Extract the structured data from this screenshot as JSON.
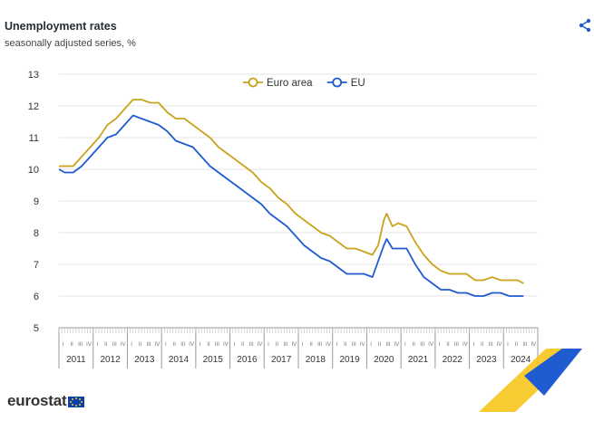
{
  "header": {
    "title": "Unemployment rates",
    "subtitle": "seasonally adjusted series, %"
  },
  "footer": {
    "logo_text": "eurostat"
  },
  "icons": {
    "share": "share-icon",
    "flag": "eu-flag-icon"
  },
  "colors": {
    "euro_area": "#c9a31e",
    "eu": "#1f5bd1",
    "grid": "#e4e4e4",
    "brand_yellow": "#f6c51b",
    "brand_blue": "#1f5bd1"
  },
  "chart_data": {
    "type": "line",
    "title": "Unemployment rates",
    "subtitle": "seasonally adjusted series, %",
    "xlabel": "",
    "ylabel": "",
    "ylim": [
      5,
      13
    ],
    "yticks": [
      5,
      6,
      7,
      8,
      9,
      10,
      11,
      12,
      13
    ],
    "grid": "horizontal",
    "legend": "top-center",
    "x_years": [
      "2011",
      "2012",
      "2013",
      "2014",
      "2015",
      "2016",
      "2017",
      "2018",
      "2019",
      "2020",
      "2021",
      "2022",
      "2023",
      "2024"
    ],
    "x_quarters": [
      "I",
      "II",
      "III",
      "IV"
    ],
    "x_start": "2011-01",
    "x_end": "2024-08",
    "series": [
      {
        "name": "Euro area",
        "color": "#c9a31e",
        "points": [
          [
            "2011-01",
            10.1
          ],
          [
            "2011-03",
            10.1
          ],
          [
            "2011-06",
            10.1
          ],
          [
            "2011-09",
            10.4
          ],
          [
            "2011-12",
            10.7
          ],
          [
            "2012-03",
            11.0
          ],
          [
            "2012-06",
            11.4
          ],
          [
            "2012-09",
            11.6
          ],
          [
            "2012-12",
            11.9
          ],
          [
            "2013-03",
            12.2
          ],
          [
            "2013-06",
            12.2
          ],
          [
            "2013-09",
            12.1
          ],
          [
            "2013-12",
            12.1
          ],
          [
            "2014-03",
            11.8
          ],
          [
            "2014-06",
            11.6
          ],
          [
            "2014-09",
            11.6
          ],
          [
            "2014-12",
            11.4
          ],
          [
            "2015-03",
            11.2
          ],
          [
            "2015-06",
            11.0
          ],
          [
            "2015-09",
            10.7
          ],
          [
            "2015-12",
            10.5
          ],
          [
            "2016-03",
            10.3
          ],
          [
            "2016-06",
            10.1
          ],
          [
            "2016-09",
            9.9
          ],
          [
            "2016-12",
            9.6
          ],
          [
            "2017-03",
            9.4
          ],
          [
            "2017-06",
            9.1
          ],
          [
            "2017-09",
            8.9
          ],
          [
            "2017-12",
            8.6
          ],
          [
            "2018-03",
            8.4
          ],
          [
            "2018-06",
            8.2
          ],
          [
            "2018-09",
            8.0
          ],
          [
            "2018-12",
            7.9
          ],
          [
            "2019-03",
            7.7
          ],
          [
            "2019-06",
            7.5
          ],
          [
            "2019-09",
            7.5
          ],
          [
            "2019-12",
            7.4
          ],
          [
            "2020-03",
            7.3
          ],
          [
            "2020-05",
            7.6
          ],
          [
            "2020-07",
            8.4
          ],
          [
            "2020-08",
            8.6
          ],
          [
            "2020-10",
            8.2
          ],
          [
            "2020-12",
            8.3
          ],
          [
            "2021-03",
            8.2
          ],
          [
            "2021-06",
            7.7
          ],
          [
            "2021-09",
            7.3
          ],
          [
            "2021-12",
            7.0
          ],
          [
            "2022-03",
            6.8
          ],
          [
            "2022-06",
            6.7
          ],
          [
            "2022-09",
            6.7
          ],
          [
            "2022-12",
            6.7
          ],
          [
            "2023-03",
            6.5
          ],
          [
            "2023-06",
            6.5
          ],
          [
            "2023-09",
            6.6
          ],
          [
            "2023-12",
            6.5
          ],
          [
            "2024-03",
            6.5
          ],
          [
            "2024-06",
            6.5
          ],
          [
            "2024-08",
            6.4
          ]
        ]
      },
      {
        "name": "EU",
        "color": "#1f5bd1",
        "points": [
          [
            "2011-01",
            10.0
          ],
          [
            "2011-03",
            9.9
          ],
          [
            "2011-06",
            9.9
          ],
          [
            "2011-09",
            10.1
          ],
          [
            "2011-12",
            10.4
          ],
          [
            "2012-03",
            10.7
          ],
          [
            "2012-06",
            11.0
          ],
          [
            "2012-09",
            11.1
          ],
          [
            "2012-12",
            11.4
          ],
          [
            "2013-03",
            11.7
          ],
          [
            "2013-06",
            11.6
          ],
          [
            "2013-09",
            11.5
          ],
          [
            "2013-12",
            11.4
          ],
          [
            "2014-03",
            11.2
          ],
          [
            "2014-06",
            10.9
          ],
          [
            "2014-09",
            10.8
          ],
          [
            "2014-12",
            10.7
          ],
          [
            "2015-03",
            10.4
          ],
          [
            "2015-06",
            10.1
          ],
          [
            "2015-09",
            9.9
          ],
          [
            "2015-12",
            9.7
          ],
          [
            "2016-03",
            9.5
          ],
          [
            "2016-06",
            9.3
          ],
          [
            "2016-09",
            9.1
          ],
          [
            "2016-12",
            8.9
          ],
          [
            "2017-03",
            8.6
          ],
          [
            "2017-06",
            8.4
          ],
          [
            "2017-09",
            8.2
          ],
          [
            "2017-12",
            7.9
          ],
          [
            "2018-03",
            7.6
          ],
          [
            "2018-06",
            7.4
          ],
          [
            "2018-09",
            7.2
          ],
          [
            "2018-12",
            7.1
          ],
          [
            "2019-03",
            6.9
          ],
          [
            "2019-06",
            6.7
          ],
          [
            "2019-09",
            6.7
          ],
          [
            "2019-12",
            6.7
          ],
          [
            "2020-03",
            6.6
          ],
          [
            "2020-05",
            7.1
          ],
          [
            "2020-07",
            7.6
          ],
          [
            "2020-08",
            7.8
          ],
          [
            "2020-10",
            7.5
          ],
          [
            "2020-12",
            7.5
          ],
          [
            "2021-03",
            7.5
          ],
          [
            "2021-06",
            7.0
          ],
          [
            "2021-09",
            6.6
          ],
          [
            "2021-12",
            6.4
          ],
          [
            "2022-03",
            6.2
          ],
          [
            "2022-06",
            6.2
          ],
          [
            "2022-09",
            6.1
          ],
          [
            "2022-12",
            6.1
          ],
          [
            "2023-03",
            6.0
          ],
          [
            "2023-06",
            6.0
          ],
          [
            "2023-09",
            6.1
          ],
          [
            "2023-12",
            6.1
          ],
          [
            "2024-03",
            6.0
          ],
          [
            "2024-06",
            6.0
          ],
          [
            "2024-08",
            6.0
          ]
        ]
      }
    ]
  }
}
